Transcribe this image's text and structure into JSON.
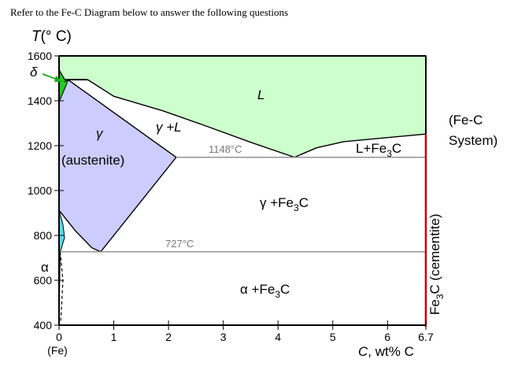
{
  "page_title": "Refer to the Fe-C Diagram below to answer the following questions",
  "colors": {
    "liquid": "#ccffcc",
    "austenite": "#ccccff",
    "delta_ferrite": "#22cc22",
    "alpha_ferrite": "#55ddee",
    "cementite_line": "#cc0000",
    "isotherm": "#888888",
    "delta_label": "#22aa22",
    "alpha_label": "#2222cc"
  },
  "chart_data": {
    "type": "phase-diagram",
    "xlabel": {
      "prefix": "C",
      "suffix": ", wt% C"
    },
    "ylabel": {
      "prefix": "T",
      "suffix": "(° C)"
    },
    "xlim": [
      0,
      6.7
    ],
    "ylim": [
      400,
      1600
    ],
    "x_ticks": [
      "0",
      "1",
      "2",
      "3",
      "4",
      "5",
      "6",
      "6.7"
    ],
    "y_ticks": [
      "400",
      "600",
      "800",
      "1000",
      "1200",
      "1400",
      "1600"
    ],
    "x_origin_sublabel": "(Fe)",
    "system_label": [
      "(Fe-C",
      "System)"
    ],
    "right_axis_label": {
      "base": "Fe",
      "sub": "3",
      "tail": "C (cementite)"
    },
    "isotherms": [
      {
        "label": "1148°C",
        "T": 1148,
        "x_from": 2.14,
        "x_to": 6.7
      },
      {
        "label": "727°C",
        "T": 727,
        "x_from": 0.022,
        "x_to": 6.7
      }
    ],
    "phase_labels": {
      "delta": "δ",
      "alpha": "α",
      "liquid": "L",
      "gamma": "γ",
      "austenite": "(austenite)",
      "gamma_liquid": "γ +L",
      "liquid_fe3c": {
        "base": "L+Fe",
        "sub": "3",
        "tail": "C"
      },
      "gamma_fe3c": {
        "base": "γ +Fe",
        "sub": "3",
        "tail": "C"
      },
      "alpha_fe3c": {
        "base": "α +Fe",
        "sub": "3",
        "tail": "C"
      }
    },
    "regions": {
      "liquid": [
        [
          0,
          1600
        ],
        [
          6.7,
          1600
        ],
        [
          6.7,
          1252
        ],
        [
          5.2,
          1218
        ],
        [
          4.7,
          1190
        ],
        [
          4.3,
          1148
        ],
        [
          3.5,
          1215
        ],
        [
          2.6,
          1295
        ],
        [
          1.9,
          1355
        ],
        [
          1.0,
          1420
        ],
        [
          0.53,
          1493
        ],
        [
          0.5,
          1495
        ],
        [
          0.1,
          1495
        ],
        [
          0,
          1538
        ]
      ],
      "austenite": [
        [
          0,
          1394
        ],
        [
          0.09,
          1485
        ],
        [
          0.17,
          1493
        ],
        [
          2.14,
          1148
        ],
        [
          0.76,
          727
        ],
        [
          0.6,
          745
        ],
        [
          0.3,
          820
        ],
        [
          0,
          912
        ]
      ],
      "delta": [
        [
          0,
          1538
        ],
        [
          0.1,
          1495
        ],
        [
          0.17,
          1493
        ],
        [
          0,
          1394
        ]
      ],
      "alpha": [
        [
          0,
          912
        ],
        [
          0.07,
          850
        ],
        [
          0.1,
          790
        ],
        [
          0.022,
          727
        ],
        [
          0.0,
          420
        ]
      ]
    },
    "solidus_lines": [
      [
        [
          0.17,
          1493
        ],
        [
          0.53,
          1493
        ]
      ],
      [
        [
          0.09,
          1485
        ],
        [
          0.17,
          1493
        ]
      ]
    ],
    "solvus_line": [
      [
        0.022,
        727
      ],
      [
        0.07,
        600
      ],
      [
        0.05,
        500
      ],
      [
        0.03,
        420
      ]
    ]
  }
}
